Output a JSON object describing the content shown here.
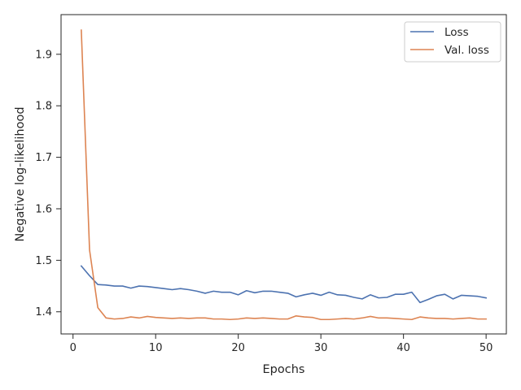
{
  "chart_data": {
    "type": "line",
    "xlabel": "Epochs",
    "ylabel": "Negative log-likelihood",
    "xlim": [
      -1.45,
      52.45
    ],
    "ylim": [
      1.357,
      1.977
    ],
    "xticks": [
      0,
      10,
      20,
      30,
      40,
      50
    ],
    "yticks": [
      1.4,
      1.5,
      1.6,
      1.7,
      1.8,
      1.9
    ],
    "ytick_labels": [
      "1.4",
      "1.5",
      "1.6",
      "1.7",
      "1.8",
      "1.9"
    ],
    "grid": false,
    "legend_position": "top-right",
    "x": [
      1,
      2,
      3,
      4,
      5,
      6,
      7,
      8,
      9,
      10,
      11,
      12,
      13,
      14,
      15,
      16,
      17,
      18,
      19,
      20,
      21,
      22,
      23,
      24,
      25,
      26,
      27,
      28,
      29,
      30,
      31,
      32,
      33,
      34,
      35,
      36,
      37,
      38,
      39,
      40,
      41,
      42,
      43,
      44,
      45,
      46,
      47,
      48,
      49,
      50
    ],
    "series": [
      {
        "name": "Loss",
        "color": "#4c72b0",
        "values": [
          1.489,
          1.47,
          1.453,
          1.452,
          1.45,
          1.45,
          1.446,
          1.45,
          1.449,
          1.447,
          1.445,
          1.443,
          1.445,
          1.443,
          1.44,
          1.436,
          1.44,
          1.438,
          1.438,
          1.433,
          1.441,
          1.437,
          1.44,
          1.44,
          1.438,
          1.436,
          1.429,
          1.433,
          1.436,
          1.432,
          1.438,
          1.433,
          1.432,
          1.428,
          1.425,
          1.433,
          1.427,
          1.428,
          1.434,
          1.434,
          1.438,
          1.418,
          1.424,
          1.431,
          1.434,
          1.425,
          1.432,
          1.431,
          1.43,
          1.427
        ]
      },
      {
        "name": "Val. loss",
        "color": "#dd8452",
        "values": [
          1.947,
          1.52,
          1.408,
          1.388,
          1.386,
          1.387,
          1.39,
          1.388,
          1.391,
          1.389,
          1.388,
          1.387,
          1.388,
          1.387,
          1.388,
          1.388,
          1.386,
          1.386,
          1.385,
          1.386,
          1.388,
          1.387,
          1.388,
          1.387,
          1.386,
          1.386,
          1.392,
          1.39,
          1.389,
          1.385,
          1.385,
          1.386,
          1.387,
          1.386,
          1.388,
          1.391,
          1.388,
          1.388,
          1.387,
          1.386,
          1.385,
          1.39,
          1.388,
          1.387,
          1.387,
          1.386,
          1.387,
          1.388,
          1.386,
          1.386
        ]
      }
    ]
  }
}
